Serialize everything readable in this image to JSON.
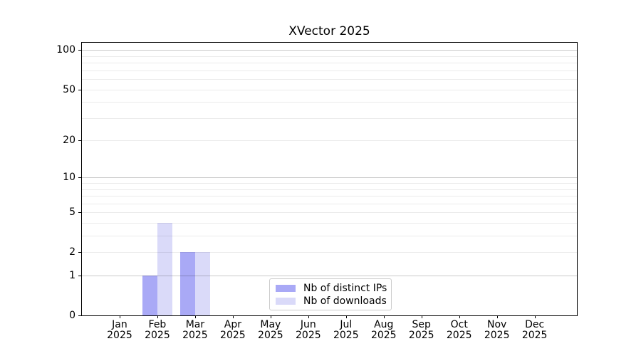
{
  "chart_data": {
    "type": "bar",
    "title": "XVector 2025",
    "categories": [
      "Jan",
      "Feb",
      "Mar",
      "Apr",
      "May",
      "Jun",
      "Jul",
      "Aug",
      "Sep",
      "Oct",
      "Nov",
      "Dec"
    ],
    "x_tick_second_line": "2025",
    "series": [
      {
        "name": "Nb of distinct IPs",
        "color": "#a9a9f6",
        "values": [
          0,
          1,
          2,
          0,
          0,
          0,
          0,
          0,
          0,
          0,
          0,
          0
        ]
      },
      {
        "name": "Nb of downloads",
        "color": "#dadaf9",
        "values": [
          0,
          4,
          2,
          0,
          0,
          0,
          0,
          0,
          0,
          0,
          0,
          0
        ]
      }
    ],
    "yscale": "log1p",
    "ylim": [
      0,
      114
    ],
    "y_ticks": [
      0,
      1,
      2,
      5,
      10,
      20,
      50,
      100
    ],
    "grid_minor_values": [
      2,
      3,
      4,
      5,
      6,
      7,
      8,
      9,
      20,
      30,
      40,
      50,
      60,
      70,
      80,
      90
    ],
    "grid_major_values": [
      1,
      10,
      100
    ],
    "grid": true,
    "legend_position": "lower center",
    "xlabel": "",
    "ylabel": ""
  },
  "style_colors": {
    "background": "#ffffff",
    "spine": "#000000",
    "grid_minor": "#ececec",
    "grid_major": "#c9c9c9",
    "legend_border": "#cccccc"
  }
}
